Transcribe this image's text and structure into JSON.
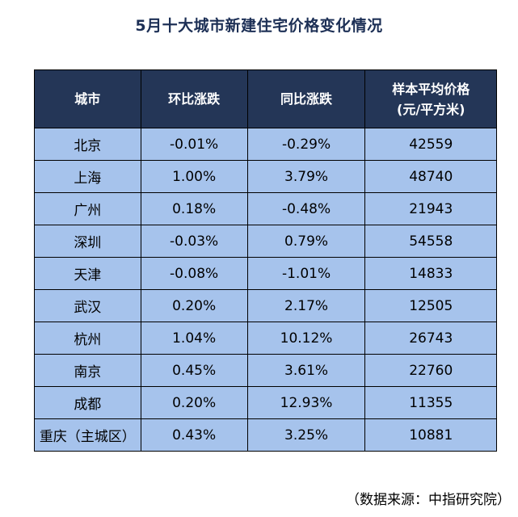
{
  "title": "5月十大城市新建住宅价格变化情况",
  "headers": {
    "city": "城市",
    "mom": "环比涨跌",
    "yoy": "同比涨跌",
    "price_line1": "样本平均价格",
    "price_line2": "(元/平方米)"
  },
  "rows": [
    {
      "city": "北京",
      "mom": "-0.01%",
      "yoy": "-0.29%",
      "price": "42559"
    },
    {
      "city": "上海",
      "mom": "1.00%",
      "yoy": "3.79%",
      "price": "48740"
    },
    {
      "city": "广州",
      "mom": "0.18%",
      "yoy": "-0.48%",
      "price": "21943"
    },
    {
      "city": "深圳",
      "mom": "-0.03%",
      "yoy": "0.79%",
      "price": "54558"
    },
    {
      "city": "天津",
      "mom": "-0.08%",
      "yoy": "-1.01%",
      "price": "14833"
    },
    {
      "city": "武汉",
      "mom": "0.20%",
      "yoy": "2.17%",
      "price": "12505"
    },
    {
      "city": "杭州",
      "mom": "1.04%",
      "yoy": "10.12%",
      "price": "26743"
    },
    {
      "city": "南京",
      "mom": "0.45%",
      "yoy": "3.61%",
      "price": "22760"
    },
    {
      "city": "成都",
      "mom": "0.20%",
      "yoy": "12.93%",
      "price": "11355"
    },
    {
      "city": "重庆（主城区）",
      "mom": "0.43%",
      "yoy": "3.25%",
      "price": "10881"
    }
  ],
  "source": "（数据来源：中指研究院）",
  "colors": {
    "header_bg": "#243657",
    "row_bg": "#a6c3ec",
    "title": "#1c2f55"
  }
}
